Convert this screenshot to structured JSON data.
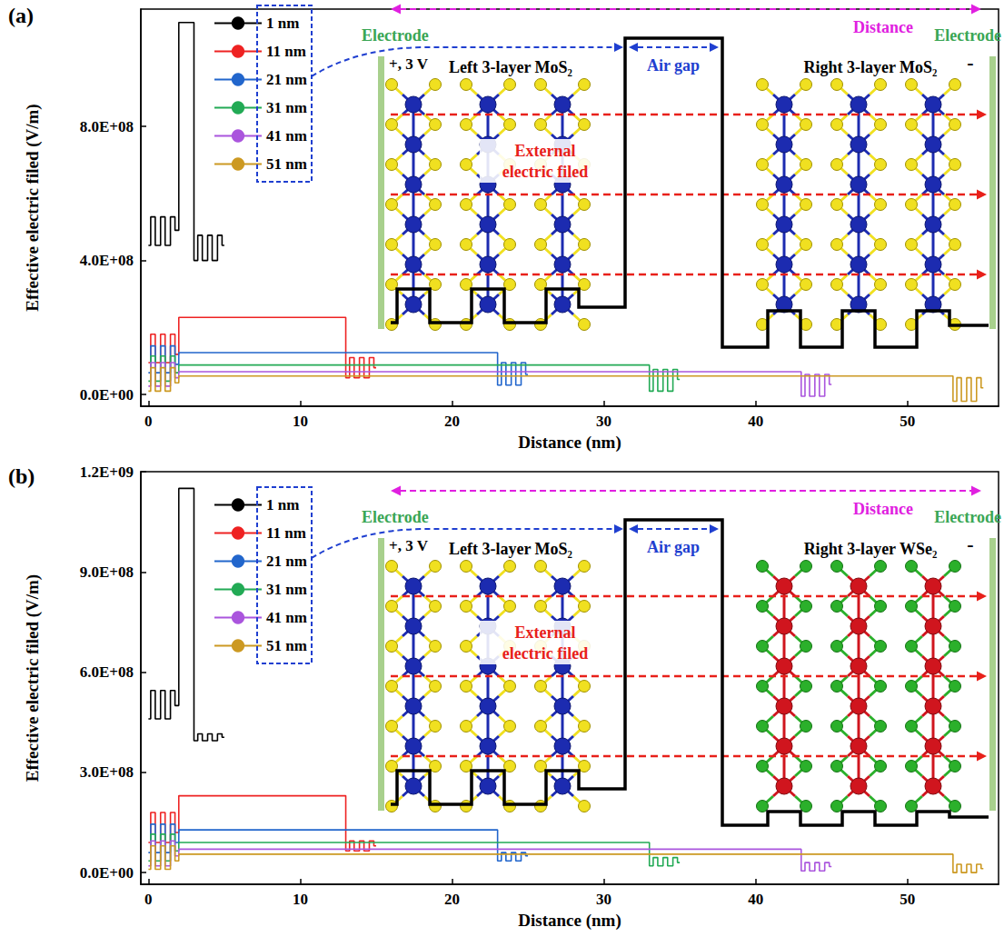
{
  "chart_data": [
    {
      "type": "step",
      "title": "(a)",
      "x_label": "Distance (nm)",
      "y_label": "Effective electric filed (V/m)",
      "xlim": [
        -0.5,
        56
      ],
      "xticks": [
        0,
        10,
        20,
        30,
        40,
        50
      ],
      "ylim": [
        -35000000.0,
        1150000000.0
      ],
      "yticks": [
        {
          "value": 0,
          "label": "0.0E+00"
        },
        {
          "value": 400000000.0,
          "label": "4.0E+08"
        },
        {
          "value": 800000000.0,
          "label": "8.0E+08"
        }
      ],
      "grid": false,
      "legend": "upper left",
      "annotations": [
        "Distance",
        "Electrode",
        "+, 3 V",
        "Left 3-layer MoS₂",
        "Air gap",
        "Right 3-layer MoS₂",
        "External electric filed",
        "Electrode",
        "-"
      ],
      "series": [
        {
          "name": "1 nm",
          "color": "#000000",
          "x": [
            0,
            0.15,
            0.45,
            0.8,
            1.1,
            1.45,
            1.75,
            2,
            3,
            3.25,
            3.55,
            3.9,
            4.2,
            4.55,
            4.85,
            5
          ],
          "values": [
            445000000.0,
            530000000.0,
            445000000.0,
            530000000.0,
            445000000.0,
            530000000.0,
            490000000.0,
            1110000000.0,
            400000000.0,
            475000000.0,
            400000000.0,
            475000000.0,
            400000000.0,
            475000000.0,
            445000000.0,
            445000000.0
          ]
        },
        {
          "name": "11 nm",
          "color": "#ee2222",
          "x": [
            0,
            0.15,
            0.45,
            0.8,
            1.1,
            1.45,
            1.75,
            2,
            13,
            13.25,
            13.55,
            13.9,
            14.2,
            14.55,
            14.85,
            15
          ],
          "values": [
            95000000.0,
            180000000.0,
            95000000.0,
            180000000.0,
            95000000.0,
            180000000.0,
            120000000.0,
            230000000.0,
            50000000.0,
            110000000.0,
            50000000.0,
            110000000.0,
            50000000.0,
            110000000.0,
            80000000.0,
            80000000.0
          ]
        },
        {
          "name": "21 nm",
          "color": "#2266cc",
          "x": [
            0,
            0.15,
            0.45,
            0.8,
            1.1,
            1.45,
            1.75,
            2,
            23,
            23.25,
            23.55,
            23.9,
            24.2,
            24.55,
            24.85,
            25
          ],
          "values": [
            65000000.0,
            145000000.0,
            65000000.0,
            145000000.0,
            65000000.0,
            145000000.0,
            90000000.0,
            125000000.0,
            28000000.0,
            95000000.0,
            28000000.0,
            95000000.0,
            28000000.0,
            95000000.0,
            60000000.0,
            60000000.0
          ]
        },
        {
          "name": "31 nm",
          "color": "#22aa55",
          "x": [
            0,
            0.15,
            0.45,
            0.8,
            1.1,
            1.45,
            1.75,
            2,
            33,
            33.25,
            33.55,
            33.9,
            34.2,
            34.55,
            34.85,
            35
          ],
          "values": [
            40000000.0,
            115000000.0,
            40000000.0,
            115000000.0,
            40000000.0,
            115000000.0,
            65000000.0,
            88000000.0,
            10000000.0,
            75000000.0,
            10000000.0,
            75000000.0,
            10000000.0,
            75000000.0,
            45000000.0,
            45000000.0
          ]
        },
        {
          "name": "41 nm",
          "color": "#aa55dd",
          "x": [
            0,
            0.15,
            0.45,
            0.8,
            1.1,
            1.45,
            1.75,
            2,
            43,
            43.25,
            43.55,
            43.9,
            44.2,
            44.55,
            44.85,
            45
          ],
          "values": [
            25000000.0,
            95000000.0,
            25000000.0,
            95000000.0,
            25000000.0,
            95000000.0,
            50000000.0,
            68000000.0,
            -5000000.0,
            60000000.0,
            -5000000.0,
            60000000.0,
            -5000000.0,
            60000000.0,
            30000000.0,
            30000000.0
          ]
        },
        {
          "name": "51 nm",
          "color": "#cc9922",
          "x": [
            0,
            0.15,
            0.45,
            0.8,
            1.1,
            1.45,
            1.75,
            2,
            53,
            53.25,
            53.55,
            53.9,
            54.2,
            54.55,
            54.85,
            55
          ],
          "values": [
            10000000.0,
            80000000.0,
            10000000.0,
            80000000.0,
            10000000.0,
            80000000.0,
            35000000.0,
            55000000.0,
            -20000000.0,
            50000000.0,
            -20000000.0,
            50000000.0,
            -20000000.0,
            50000000.0,
            20000000.0,
            20000000.0
          ]
        }
      ]
    },
    {
      "type": "step",
      "title": "(b)",
      "x_label": "Distance (nm)",
      "y_label": "Effective electric filed (V/m)",
      "xlim": [
        -0.5,
        56
      ],
      "xticks": [
        0,
        10,
        20,
        30,
        40,
        50
      ],
      "ylim": [
        -35000000.0,
        1200000000.0
      ],
      "yticks": [
        {
          "value": 0,
          "label": "0.0E+00"
        },
        {
          "value": 300000000.0,
          "label": "3.0E+08"
        },
        {
          "value": 600000000.0,
          "label": "6.0E+08"
        },
        {
          "value": 900000000.0,
          "label": "9.0E+08"
        },
        {
          "value": 1200000000.0,
          "label": "1.2E+09"
        }
      ],
      "grid": false,
      "legend": "upper left",
      "annotations": [
        "Distance",
        "Electrode",
        "+, 3 V",
        "Left 3-layer MoS₂",
        "Air gap",
        "Right 3-layer WSe₂",
        "External electric filed",
        "Electrode",
        "-"
      ],
      "series": [
        {
          "name": "1 nm",
          "color": "#000000",
          "x": [
            0,
            0.15,
            0.45,
            0.8,
            1.1,
            1.45,
            1.75,
            2,
            3,
            3.25,
            3.55,
            3.9,
            4.2,
            4.55,
            4.85,
            5
          ],
          "values": [
            460000000.0,
            545000000.0,
            460000000.0,
            545000000.0,
            460000000.0,
            545000000.0,
            500000000.0,
            1150000000.0,
            395000000.0,
            415000000.0,
            395000000.0,
            415000000.0,
            395000000.0,
            415000000.0,
            405000000.0,
            405000000.0
          ]
        },
        {
          "name": "11 nm",
          "color": "#ee2222",
          "x": [
            0,
            0.15,
            0.45,
            0.8,
            1.1,
            1.45,
            1.75,
            2,
            13,
            13.25,
            13.55,
            13.9,
            14.2,
            14.55,
            14.85,
            15
          ],
          "values": [
            90000000.0,
            180000000.0,
            90000000.0,
            180000000.0,
            90000000.0,
            180000000.0,
            120000000.0,
            230000000.0,
            65000000.0,
            95000000.0,
            65000000.0,
            95000000.0,
            65000000.0,
            95000000.0,
            80000000.0,
            80000000.0
          ]
        },
        {
          "name": "21 nm",
          "color": "#2266cc",
          "x": [
            0,
            0.15,
            0.45,
            0.8,
            1.1,
            1.45,
            1.75,
            2,
            23,
            23.25,
            23.55,
            23.9,
            24.2,
            24.55,
            24.85,
            25
          ],
          "values": [
            60000000.0,
            145000000.0,
            60000000.0,
            145000000.0,
            60000000.0,
            145000000.0,
            90000000.0,
            128000000.0,
            35000000.0,
            60000000.0,
            35000000.0,
            60000000.0,
            35000000.0,
            60000000.0,
            50000000.0,
            50000000.0
          ]
        },
        {
          "name": "31 nm",
          "color": "#22aa55",
          "x": [
            0,
            0.15,
            0.45,
            0.8,
            1.1,
            1.45,
            1.75,
            2,
            33,
            33.25,
            33.55,
            33.9,
            34.2,
            34.55,
            34.85,
            35
          ],
          "values": [
            35000000.0,
            115000000.0,
            35000000.0,
            115000000.0,
            35000000.0,
            115000000.0,
            65000000.0,
            90000000.0,
            20000000.0,
            45000000.0,
            20000000.0,
            45000000.0,
            20000000.0,
            45000000.0,
            30000000.0,
            30000000.0
          ]
        },
        {
          "name": "41 nm",
          "color": "#aa55dd",
          "x": [
            0,
            0.15,
            0.45,
            0.8,
            1.1,
            1.45,
            1.75,
            2,
            43,
            43.25,
            43.55,
            43.9,
            44.2,
            44.55,
            44.85,
            45
          ],
          "values": [
            20000000.0,
            95000000.0,
            20000000.0,
            95000000.0,
            20000000.0,
            95000000.0,
            50000000.0,
            70000000.0,
            5000000.0,
            30000000.0,
            5000000.0,
            30000000.0,
            5000000.0,
            30000000.0,
            18000000.0,
            18000000.0
          ]
        },
        {
          "name": "51 nm",
          "color": "#cc9922",
          "x": [
            0,
            0.15,
            0.45,
            0.8,
            1.1,
            1.45,
            1.75,
            2,
            53,
            53.25,
            53.55,
            53.9,
            54.2,
            54.55,
            54.85,
            55
          ],
          "values": [
            10000000.0,
            80000000.0,
            10000000.0,
            80000000.0,
            10000000.0,
            80000000.0,
            35000000.0,
            55000000.0,
            0,
            25000000.0,
            0,
            25000000.0,
            0,
            25000000.0,
            12000000.0,
            12000000.0
          ]
        }
      ]
    }
  ]
}
